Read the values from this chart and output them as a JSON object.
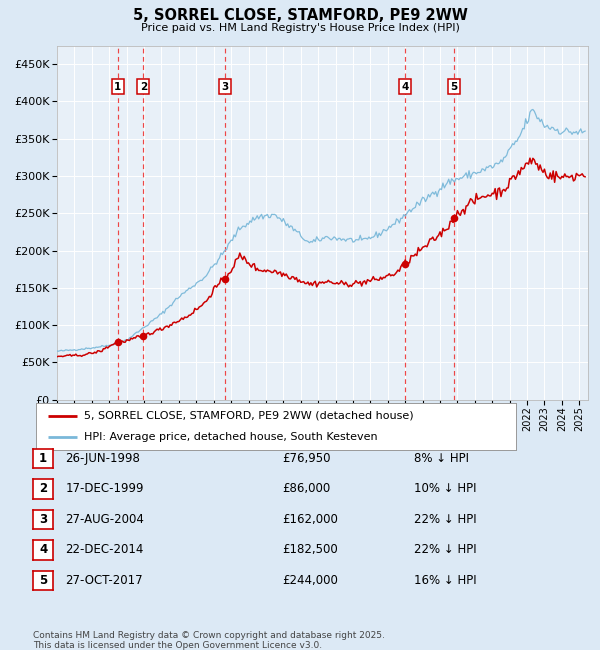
{
  "title": "5, SORREL CLOSE, STAMFORD, PE9 2WW",
  "subtitle": "Price paid vs. HM Land Registry's House Price Index (HPI)",
  "sales": [
    {
      "label": "1",
      "date": "26-JUN-1998",
      "date_num": 1998.49,
      "price": 76950,
      "hpi_pct": "8% ↓ HPI"
    },
    {
      "label": "2",
      "date": "17-DEC-1999",
      "date_num": 1999.96,
      "price": 86000,
      "hpi_pct": "10% ↓ HPI"
    },
    {
      "label": "3",
      "date": "27-AUG-2004",
      "date_num": 2004.66,
      "price": 162000,
      "hpi_pct": "22% ↓ HPI"
    },
    {
      "label": "4",
      "date": "22-DEC-2014",
      "date_num": 2014.98,
      "price": 182500,
      "hpi_pct": "22% ↓ HPI"
    },
    {
      "label": "5",
      "date": "27-OCT-2017",
      "date_num": 2017.82,
      "price": 244000,
      "hpi_pct": "16% ↓ HPI"
    }
  ],
  "hpi_color": "#7ab8d9",
  "price_color": "#cc0000",
  "bg_color": "#dce9f5",
  "plot_bg": "#e8f0f8",
  "grid_color": "#ffffff",
  "vline_color": "#ee3333",
  "xlim": [
    1995.0,
    2025.5
  ],
  "ylim": [
    0,
    475000
  ],
  "yticks": [
    0,
    50000,
    100000,
    150000,
    200000,
    250000,
    300000,
    350000,
    400000,
    450000
  ],
  "footnote": "Contains HM Land Registry data © Crown copyright and database right 2025.\nThis data is licensed under the Open Government Licence v3.0.",
  "legend_price_label": "5, SORREL CLOSE, STAMFORD, PE9 2WW (detached house)",
  "legend_hpi_label": "HPI: Average price, detached house, South Kesteven"
}
